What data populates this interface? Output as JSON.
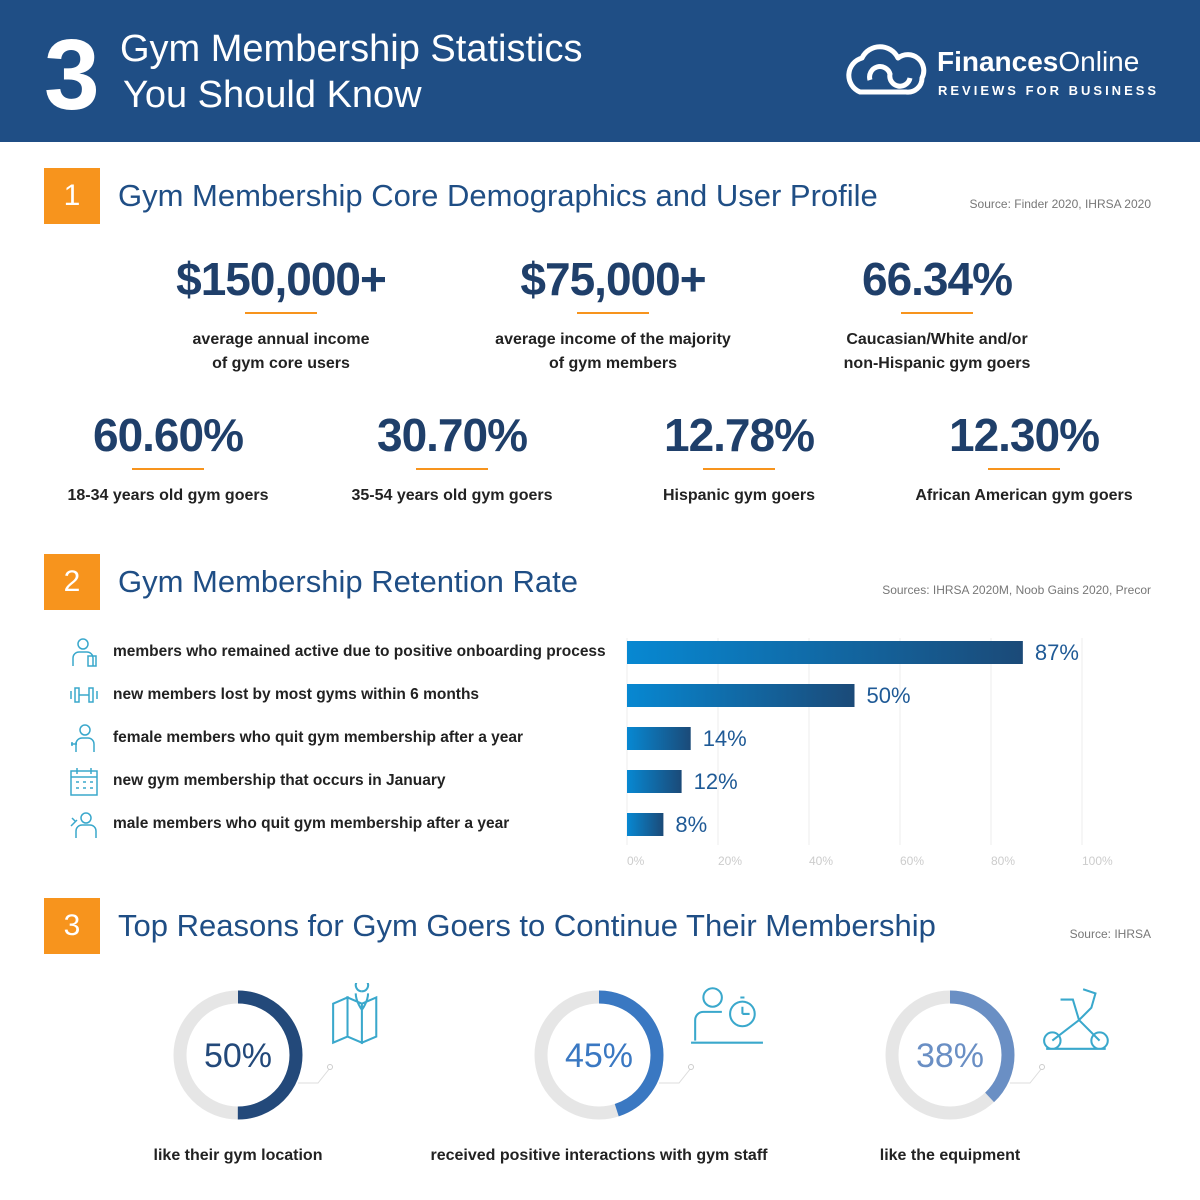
{
  "header": {
    "number": "3",
    "title_line1": "Gym Membership Statistics",
    "title_line2": "You Should Know",
    "logo_name_bold": "Finances",
    "logo_name_light": "Online",
    "logo_tagline": "REVIEWS FOR BUSINESS"
  },
  "sections": [
    {
      "number": "1",
      "title": "Gym Membership Core Demographics and User Profile",
      "source": "Source: Finder 2020, IHRSA 2020",
      "stats_row1": [
        {
          "value": "$150,000+",
          "line1": "average annual income",
          "line2": "of gym core users"
        },
        {
          "value": "$75,000+",
          "line1": "average income of the majority",
          "line2": "of gym members"
        },
        {
          "value": "66.34%",
          "line1": "Caucasian/White and/or",
          "line2": "non-Hispanic gym goers"
        }
      ],
      "stats_row2": [
        {
          "value": "60.60%",
          "line1": "18-34 years old gym goers"
        },
        {
          "value": "30.70%",
          "line1": "35-54 years old gym goers"
        },
        {
          "value": "12.78%",
          "line1": "Hispanic gym goers"
        },
        {
          "value": "12.30%",
          "line1": "African American gym goers"
        }
      ]
    },
    {
      "number": "2",
      "title": "Gym Membership Retention Rate",
      "source": "Sources: IHRSA 2020M, Noob Gains 2020, Precor"
    },
    {
      "number": "3",
      "title": "Top Reasons for Gym Goers to Continue Their Membership",
      "source": "Source: IHRSA"
    }
  ],
  "chart_data": [
    {
      "type": "bar",
      "orientation": "horizontal",
      "categories": [
        "members who remained active due to positive onboarding process",
        "new members lost by most gyms within 6 months",
        "female members who quit gym membership after a year",
        "new gym membership that occurs in January",
        "male members who quit gym membership after a year"
      ],
      "icons": [
        "trainer-icon",
        "dumbbell-icon",
        "female-lifter-icon",
        "calendar-icon",
        "male-lifter-icon"
      ],
      "values": [
        87,
        50,
        14,
        12,
        8
      ],
      "labels": [
        "87%",
        "50%",
        "14%",
        "12%",
        "8%"
      ],
      "xlim": [
        0,
        100
      ],
      "xticks": [
        "0%",
        "20%",
        "40%",
        "60%",
        "80%",
        "100%"
      ],
      "grid": true,
      "gradient": [
        "#0788d2",
        "#1b4a78"
      ]
    },
    {
      "type": "pie",
      "style": "donut",
      "items": [
        {
          "value": 50,
          "label": "50%",
          "caption": "like their gym location",
          "color": "#23497a",
          "icon": "map-pin-icon"
        },
        {
          "value": 45,
          "label": "45%",
          "caption": "received positive interactions with gym staff",
          "color": "#3a78c2",
          "icon": "staff-stopwatch-icon"
        },
        {
          "value": 38,
          "label": "38%",
          "caption": "like the equipment",
          "color": "#6a8fc4",
          "icon": "exercise-bike-icon"
        }
      ]
    }
  ]
}
